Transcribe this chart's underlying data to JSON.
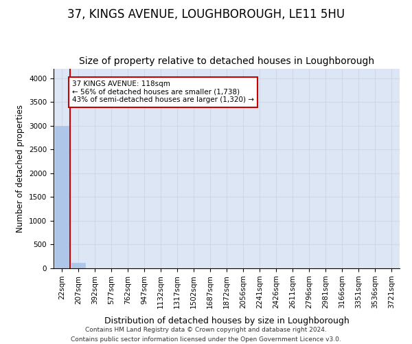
{
  "title": "37, KINGS AVENUE, LOUGHBOROUGH, LE11 5HU",
  "subtitle": "Size of property relative to detached houses in Loughborough",
  "xlabel": "Distribution of detached houses by size in Loughborough",
  "ylabel": "Number of detached properties",
  "footer_line1": "Contains HM Land Registry data © Crown copyright and database right 2024.",
  "footer_line2": "Contains public sector information licensed under the Open Government Licence v3.0.",
  "bin_labels": [
    "22sqm",
    "207sqm",
    "392sqm",
    "577sqm",
    "762sqm",
    "947sqm",
    "1132sqm",
    "1317sqm",
    "1502sqm",
    "1687sqm",
    "1872sqm",
    "2056sqm",
    "2241sqm",
    "2426sqm",
    "2611sqm",
    "2796sqm",
    "2981sqm",
    "3166sqm",
    "3351sqm",
    "3536sqm",
    "3721sqm"
  ],
  "bar_values": [
    3000,
    110,
    5,
    2,
    1,
    1,
    0,
    0,
    0,
    0,
    0,
    0,
    0,
    0,
    0,
    0,
    0,
    0,
    0,
    0,
    0
  ],
  "bar_color": "#aec6e8",
  "bar_edge_color": "#aec6e8",
  "property_line_color": "#cc0000",
  "annotation_line1": "37 KINGS AVENUE: 118sqm",
  "annotation_line2": "← 56% of detached houses are smaller (1,738)",
  "annotation_line3": "43% of semi-detached houses are larger (1,320) →",
  "annotation_box_color": "#cc0000",
  "annotation_text_color": "#000000",
  "ylim": [
    0,
    4200
  ],
  "yticks": [
    0,
    500,
    1000,
    1500,
    2000,
    2500,
    3000,
    3500,
    4000
  ],
  "grid_color": "#d0d8e8",
  "background_color": "#dce6f5",
  "title_fontsize": 12,
  "subtitle_fontsize": 10,
  "tick_fontsize": 7.5,
  "property_line_x": 0.5
}
